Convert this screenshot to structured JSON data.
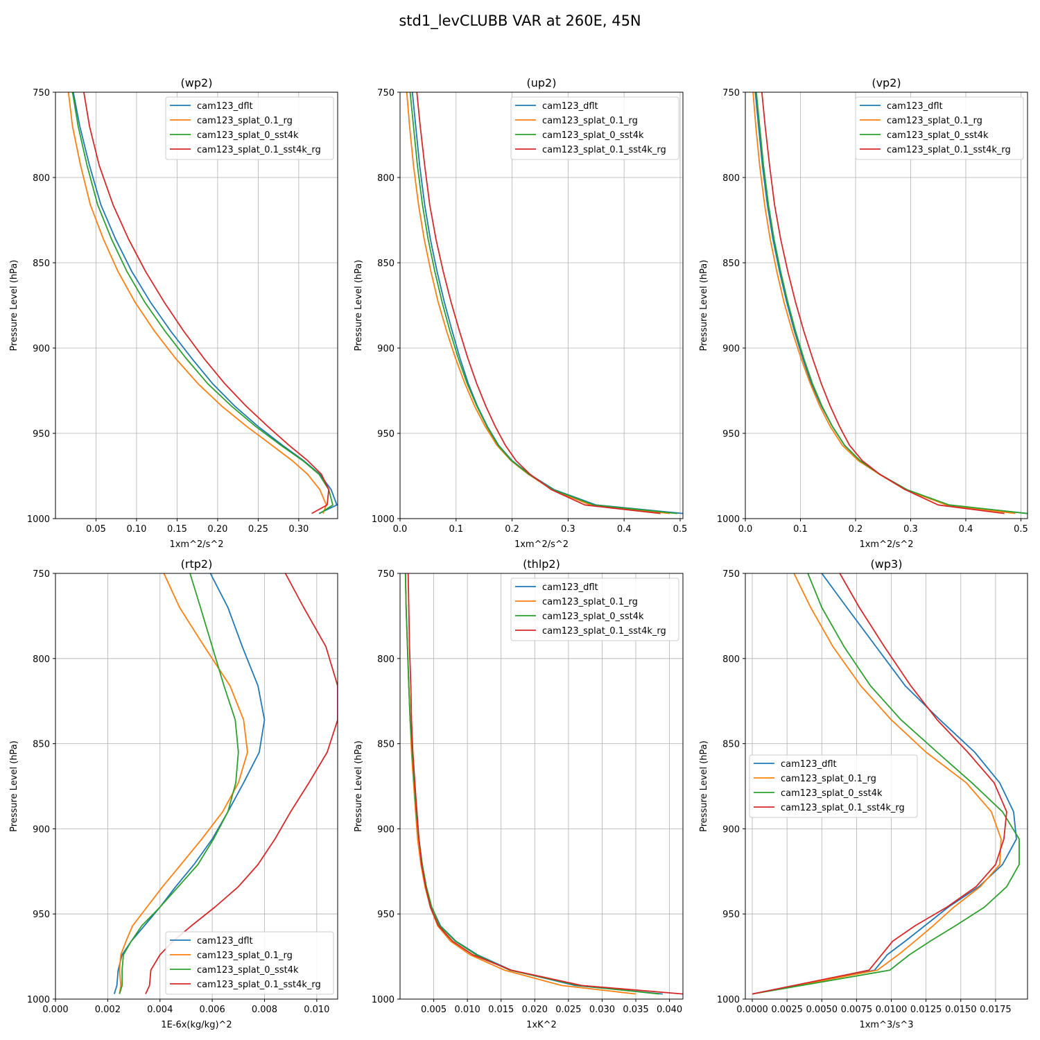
{
  "figure": {
    "title": "std1_levCLUBB VAR at 260E, 45N"
  },
  "legend_labels": [
    "cam123_dflt",
    "cam123_splat_0.1_rg",
    "cam123_splat_0_sst4k",
    "cam123_splat_0.1_sst4k_rg"
  ],
  "colors": {
    "cam123_dflt": "#1f77b4",
    "cam123_splat_0.1_rg": "#ff7f0e",
    "cam123_splat_0_sst4k": "#2ca02c",
    "cam123_splat_0.1_sst4k_rg": "#d62728",
    "grid": "#b0b0b0"
  },
  "chart_data": [
    {
      "type": "line",
      "title": "(wp2)",
      "xlabel": "1xm^2/s^2",
      "ylabel": "Pressure Level (hPa)",
      "xlim": [
        0.0,
        0.348
      ],
      "ylim": [
        1000,
        750
      ],
      "xticks": [
        0.05,
        0.1,
        0.15,
        0.2,
        0.25,
        0.3
      ],
      "xtick_labels": [
        "0.05",
        "0.10",
        "0.15",
        "0.20",
        "0.25",
        "0.30"
      ],
      "yticks": [
        750,
        800,
        850,
        900,
        950,
        1000
      ],
      "ytick_labels": [
        "750",
        "800",
        "850",
        "900",
        "950",
        "1000"
      ],
      "grid": true,
      "legend_loc": "upper right",
      "y": [
        750,
        770,
        793,
        816,
        836,
        855,
        873,
        890,
        906,
        921,
        934,
        946,
        957,
        966,
        974,
        983,
        992,
        997
      ],
      "series": [
        {
          "name": "cam123_dflt",
          "x": [
            0.022,
            0.03,
            0.042,
            0.056,
            0.074,
            0.094,
            0.117,
            0.142,
            0.168,
            0.194,
            0.221,
            0.25,
            0.28,
            0.306,
            0.326,
            0.34,
            0.347,
            0.325
          ]
        },
        {
          "name": "cam123_splat_0.1_rg",
          "x": [
            0.016,
            0.021,
            0.031,
            0.043,
            0.059,
            0.077,
            0.098,
            0.122,
            0.148,
            0.176,
            0.205,
            0.236,
            0.267,
            0.292,
            0.311,
            0.326,
            0.334,
            0.33
          ]
        },
        {
          "name": "cam123_splat_0_sst4k",
          "x": [
            0.021,
            0.028,
            0.039,
            0.052,
            0.069,
            0.088,
            0.11,
            0.135,
            0.161,
            0.188,
            0.217,
            0.247,
            0.278,
            0.305,
            0.325,
            0.337,
            0.342,
            0.326
          ]
        },
        {
          "name": "cam123_splat_0.1_sst4k_rg",
          "x": [
            0.035,
            0.042,
            0.054,
            0.071,
            0.09,
            0.111,
            0.134,
            0.158,
            0.183,
            0.209,
            0.235,
            0.262,
            0.288,
            0.311,
            0.328,
            0.337,
            0.335,
            0.316
          ]
        }
      ]
    },
    {
      "type": "line",
      "title": "(up2)",
      "xlabel": "1xm^2/s^2",
      "ylabel": "Pressure Level (hPa)",
      "xlim": [
        0.0,
        0.505
      ],
      "ylim": [
        1000,
        750
      ],
      "xticks": [
        0.0,
        0.1,
        0.2,
        0.3,
        0.4,
        0.5
      ],
      "xtick_labels": [
        "0.0",
        "0.1",
        "0.2",
        "0.3",
        "0.4",
        "0.5"
      ],
      "yticks": [
        750,
        800,
        850,
        900,
        950,
        1000
      ],
      "ytick_labels": [
        "750",
        "800",
        "850",
        "900",
        "950",
        "1000"
      ],
      "grid": true,
      "legend_loc": "upper right",
      "y": [
        750,
        770,
        793,
        816,
        836,
        855,
        873,
        890,
        906,
        921,
        934,
        946,
        957,
        966,
        974,
        983,
        992,
        997
      ],
      "series": [
        {
          "name": "cam123_dflt",
          "x": [
            0.022,
            0.028,
            0.035,
            0.044,
            0.054,
            0.066,
            0.079,
            0.093,
            0.107,
            0.122,
            0.138,
            0.156,
            0.176,
            0.2,
            0.231,
            0.275,
            0.35,
            0.505
          ]
        },
        {
          "name": "cam123_splat_0.1_rg",
          "x": [
            0.012,
            0.017,
            0.024,
            0.033,
            0.043,
            0.055,
            0.068,
            0.083,
            0.099,
            0.116,
            0.133,
            0.152,
            0.173,
            0.198,
            0.229,
            0.271,
            0.34,
            0.482
          ]
        },
        {
          "name": "cam123_splat_0_sst4k",
          "x": [
            0.018,
            0.024,
            0.031,
            0.04,
            0.05,
            0.062,
            0.075,
            0.089,
            0.104,
            0.12,
            0.137,
            0.155,
            0.175,
            0.199,
            0.23,
            0.273,
            0.346,
            0.495
          ]
        },
        {
          "name": "cam123_splat_0.1_sst4k_rg",
          "x": [
            0.03,
            0.036,
            0.044,
            0.053,
            0.064,
            0.077,
            0.091,
            0.106,
            0.121,
            0.137,
            0.153,
            0.17,
            0.188,
            0.207,
            0.232,
            0.27,
            0.33,
            0.465
          ]
        }
      ]
    },
    {
      "type": "line",
      "title": "(vp2)",
      "xlabel": "1xm^2/s^2",
      "ylabel": "Pressure Level (hPa)",
      "xlim": [
        0.0,
        0.512
      ],
      "ylim": [
        1000,
        750
      ],
      "xticks": [
        0.0,
        0.1,
        0.2,
        0.3,
        0.4,
        0.5
      ],
      "xtick_labels": [
        "0.0",
        "0.1",
        "0.2",
        "0.3",
        "0.4",
        "0.5"
      ],
      "yticks": [
        750,
        800,
        850,
        900,
        950,
        1000
      ],
      "ytick_labels": [
        "750",
        "800",
        "850",
        "900",
        "950",
        "1000"
      ],
      "grid": true,
      "legend_loc": "upper right",
      "y": [
        750,
        770,
        793,
        816,
        836,
        855,
        873,
        890,
        906,
        921,
        934,
        946,
        957,
        966,
        974,
        983,
        992,
        997
      ],
      "series": [
        {
          "name": "cam123_dflt",
          "x": [
            0.018,
            0.024,
            0.031,
            0.04,
            0.05,
            0.062,
            0.075,
            0.089,
            0.104,
            0.12,
            0.138,
            0.158,
            0.18,
            0.208,
            0.244,
            0.293,
            0.368,
            0.512
          ]
        },
        {
          "name": "cam123_splat_0.1_rg",
          "x": [
            0.014,
            0.019,
            0.026,
            0.035,
            0.045,
            0.057,
            0.07,
            0.085,
            0.101,
            0.118,
            0.135,
            0.154,
            0.176,
            0.205,
            0.243,
            0.29,
            0.365,
            0.49
          ]
        },
        {
          "name": "cam123_splat_0_sst4k",
          "x": [
            0.02,
            0.026,
            0.033,
            0.042,
            0.052,
            0.064,
            0.077,
            0.091,
            0.106,
            0.122,
            0.139,
            0.158,
            0.18,
            0.208,
            0.244,
            0.293,
            0.37,
            0.512
          ]
        },
        {
          "name": "cam123_splat_0.1_sst4k_rg",
          "x": [
            0.03,
            0.036,
            0.044,
            0.053,
            0.064,
            0.077,
            0.091,
            0.106,
            0.122,
            0.138,
            0.154,
            0.171,
            0.189,
            0.212,
            0.244,
            0.29,
            0.35,
            0.47
          ]
        }
      ]
    },
    {
      "type": "line",
      "title": "(rtp2)",
      "xlabel": "1E-6x(kg/kg)^2",
      "ylabel": "Pressure Level (hPa)",
      "xlim": [
        0.0,
        0.0108
      ],
      "ylim": [
        1000,
        750
      ],
      "xticks": [
        0.0,
        0.002,
        0.004,
        0.006,
        0.008,
        0.01
      ],
      "xtick_labels": [
        "0.000",
        "0.002",
        "0.004",
        "0.006",
        "0.008",
        "0.010"
      ],
      "yticks": [
        750,
        800,
        850,
        900,
        950,
        1000
      ],
      "ytick_labels": [
        "750",
        "800",
        "850",
        "900",
        "950",
        "1000"
      ],
      "grid": true,
      "legend_loc": "lower right",
      "y": [
        750,
        770,
        793,
        816,
        836,
        855,
        873,
        890,
        906,
        921,
        934,
        946,
        957,
        966,
        974,
        983,
        992,
        997
      ],
      "series": [
        {
          "name": "cam123_dflt",
          "x": [
            0.00593,
            0.0066,
            0.00715,
            0.00775,
            0.008,
            0.0078,
            0.0072,
            0.0066,
            0.006,
            0.0053,
            0.0046,
            0.004,
            0.0034,
            0.0029,
            0.00255,
            0.0024,
            0.00235,
            0.00225
          ]
        },
        {
          "name": "cam123_splat_0.1_rg",
          "x": [
            0.00415,
            0.00475,
            0.0057,
            0.00668,
            0.0072,
            0.00735,
            0.007,
            0.0064,
            0.0056,
            0.0048,
            0.0041,
            0.0035,
            0.00295,
            0.0027,
            0.0025,
            0.00245,
            0.0025,
            0.00245
          ]
        },
        {
          "name": "cam123_splat_0_sst4k",
          "x": [
            0.00515,
            0.00555,
            0.006,
            0.00645,
            0.00688,
            0.007,
            0.0069,
            0.0066,
            0.00605,
            0.00545,
            0.0047,
            0.004,
            0.0033,
            0.0029,
            0.0026,
            0.00255,
            0.00255,
            0.00245
          ]
        },
        {
          "name": "cam123_splat_0.1_sst4k_rg",
          "x": [
            0.0088,
            0.0095,
            0.01035,
            0.0108,
            0.0108,
            0.0104,
            0.0097,
            0.009,
            0.0084,
            0.00775,
            0.007,
            0.0061,
            0.0052,
            0.0045,
            0.004,
            0.00365,
            0.0036,
            0.00345
          ]
        }
      ]
    },
    {
      "type": "line",
      "title": "(thlp2)",
      "xlabel": "1xK^2",
      "ylabel": "Pressure Level (hPa)",
      "xlim": [
        0.0,
        0.042
      ],
      "ylim": [
        1000,
        750
      ],
      "xticks": [
        0.005,
        0.01,
        0.015,
        0.02,
        0.025,
        0.03,
        0.035,
        0.04
      ],
      "xtick_labels": [
        "0.005",
        "0.010",
        "0.015",
        "0.020",
        "0.025",
        "0.030",
        "0.035",
        "0.040"
      ],
      "yticks": [
        750,
        800,
        850,
        900,
        950,
        1000
      ],
      "ytick_labels": [
        "750",
        "800",
        "850",
        "900",
        "950",
        "1000"
      ],
      "grid": true,
      "legend_loc": "upper right",
      "y": [
        750,
        770,
        793,
        816,
        836,
        855,
        873,
        890,
        906,
        921,
        934,
        946,
        957,
        966,
        974,
        983,
        992,
        997
      ],
      "series": [
        {
          "name": "cam123_dflt",
          "x": [
            0.0008,
            0.0009,
            0.0011,
            0.0013,
            0.0015,
            0.0018,
            0.0021,
            0.0025,
            0.0028,
            0.0033,
            0.0039,
            0.0047,
            0.006,
            0.0083,
            0.0115,
            0.0165,
            0.026,
            0.039
          ]
        },
        {
          "name": "cam123_splat_0.1_rg",
          "x": [
            0.0008,
            0.0009,
            0.0011,
            0.0013,
            0.0015,
            0.0017,
            0.002,
            0.0023,
            0.0026,
            0.0031,
            0.0037,
            0.0045,
            0.0056,
            0.0075,
            0.0104,
            0.0155,
            0.024,
            0.035
          ]
        },
        {
          "name": "cam123_splat_0_sst4k",
          "x": [
            0.0008,
            0.0009,
            0.0011,
            0.0013,
            0.0015,
            0.0018,
            0.0021,
            0.0024,
            0.0028,
            0.0033,
            0.0039,
            0.0047,
            0.0059,
            0.0082,
            0.0113,
            0.0163,
            0.0265,
            0.0385
          ]
        },
        {
          "name": "cam123_splat_0.1_sst4k_rg",
          "x": [
            0.0012,
            0.0013,
            0.0014,
            0.0016,
            0.0017,
            0.0019,
            0.0022,
            0.0025,
            0.0028,
            0.0032,
            0.0038,
            0.0045,
            0.0057,
            0.0078,
            0.0108,
            0.0165,
            0.027,
            0.042
          ]
        }
      ]
    },
    {
      "type": "line",
      "title": "(wp3)",
      "xlabel": "1xm^3/s^3",
      "ylabel": "Pressure Level (hPa)",
      "xlim": [
        -0.0005,
        0.0198
      ],
      "ylim": [
        1000,
        750
      ],
      "xticks": [
        0.0,
        0.0025,
        0.005,
        0.0075,
        0.01,
        0.0125,
        0.015,
        0.0175
      ],
      "xtick_labels": [
        "0.0000",
        "0.0025",
        "0.0050",
        "0.0075",
        "0.0100",
        "0.0125",
        "0.0150",
        "0.0175"
      ],
      "yticks": [
        750,
        800,
        850,
        900,
        950,
        1000
      ],
      "ytick_labels": [
        "750",
        "800",
        "850",
        "900",
        "950",
        "1000"
      ],
      "grid": true,
      "legend_loc": "center left",
      "y": [
        750,
        770,
        793,
        816,
        836,
        855,
        873,
        890,
        906,
        921,
        934,
        946,
        957,
        966,
        974,
        983,
        997
      ],
      "series": [
        {
          "name": "cam123_dflt",
          "x": [
            0.005,
            0.0068,
            0.0089,
            0.011,
            0.0135,
            0.016,
            0.0178,
            0.0188,
            0.019,
            0.018,
            0.0163,
            0.0141,
            0.0124,
            0.011,
            0.0097,
            0.0088,
            0.0
          ]
        },
        {
          "name": "cam123_splat_0.1_rg",
          "x": [
            0.003,
            0.0042,
            0.0058,
            0.0078,
            0.01,
            0.0125,
            0.0154,
            0.0172,
            0.0179,
            0.0178,
            0.0164,
            0.0145,
            0.013,
            0.0117,
            0.0105,
            0.009,
            0.0
          ]
        },
        {
          "name": "cam123_splat_0_sst4k",
          "x": [
            0.004,
            0.005,
            0.0066,
            0.0085,
            0.0107,
            0.0133,
            0.0158,
            0.018,
            0.0192,
            0.0192,
            0.0183,
            0.0167,
            0.0146,
            0.0128,
            0.0113,
            0.0099,
            0.0
          ]
        },
        {
          "name": "cam123_splat_0.1_sst4k_rg",
          "x": [
            0.0063,
            0.0077,
            0.0095,
            0.0114,
            0.0133,
            0.0155,
            0.0174,
            0.0183,
            0.0181,
            0.0175,
            0.0161,
            0.014,
            0.0117,
            0.0101,
            0.0093,
            0.0084,
            0.0
          ]
        }
      ]
    }
  ]
}
